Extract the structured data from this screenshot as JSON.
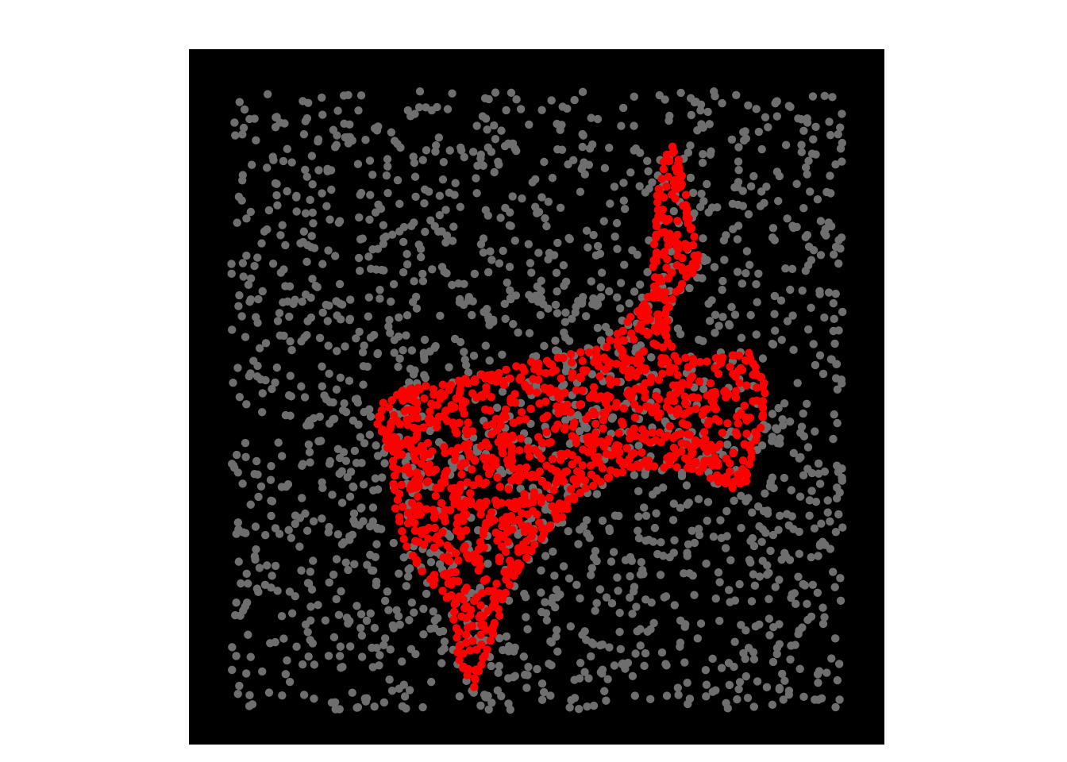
{
  "chart_data": {
    "type": "scatter",
    "title": "",
    "xlabel": "",
    "ylabel": "",
    "xlim": [
      0,
      1
    ],
    "ylim": [
      0,
      1
    ],
    "grid": false,
    "axes_visible": false,
    "colors": {
      "background": "#000000",
      "figure": "#ffffff",
      "noise": "#6e6e6e",
      "shape": "#ff0000"
    },
    "series": [
      {
        "role": "background-noise",
        "color": "#6e6e6e",
        "point_count": 1900,
        "distribution": "uniform",
        "x_range": [
          0.06,
          0.94
        ],
        "y_range": [
          0.05,
          0.94
        ]
      },
      {
        "role": "shape",
        "color": "#ff0000",
        "point_count": 1100,
        "outline": [
          [
            0.697,
            0.86
          ],
          [
            0.706,
            0.83
          ],
          [
            0.713,
            0.79
          ],
          [
            0.722,
            0.74
          ],
          [
            0.733,
            0.695
          ],
          [
            0.722,
            0.68
          ],
          [
            0.703,
            0.65
          ],
          [
            0.686,
            0.62
          ],
          [
            0.687,
            0.59
          ],
          [
            0.7,
            0.56
          ],
          [
            0.745,
            0.55
          ],
          [
            0.803,
            0.565
          ],
          [
            0.829,
            0.52
          ],
          [
            0.826,
            0.47
          ],
          [
            0.804,
            0.4
          ],
          [
            0.804,
            0.38
          ],
          [
            0.78,
            0.37
          ],
          [
            0.715,
            0.4
          ],
          [
            0.647,
            0.402
          ],
          [
            0.571,
            0.37
          ],
          [
            0.535,
            0.33
          ],
          [
            0.49,
            0.28
          ],
          [
            0.455,
            0.22
          ],
          [
            0.433,
            0.15
          ],
          [
            0.408,
            0.085
          ],
          [
            0.392,
            0.11
          ],
          [
            0.38,
            0.2
          ],
          [
            0.362,
            0.22
          ],
          [
            0.32,
            0.27
          ],
          [
            0.3,
            0.33
          ],
          [
            0.292,
            0.42
          ],
          [
            0.273,
            0.46
          ],
          [
            0.28,
            0.49
          ],
          [
            0.307,
            0.51
          ],
          [
            0.363,
            0.515
          ],
          [
            0.48,
            0.545
          ],
          [
            0.6,
            0.57
          ],
          [
            0.667,
            0.65
          ],
          [
            0.675,
            0.79
          ],
          [
            0.688,
            0.85
          ]
        ]
      }
    ]
  }
}
